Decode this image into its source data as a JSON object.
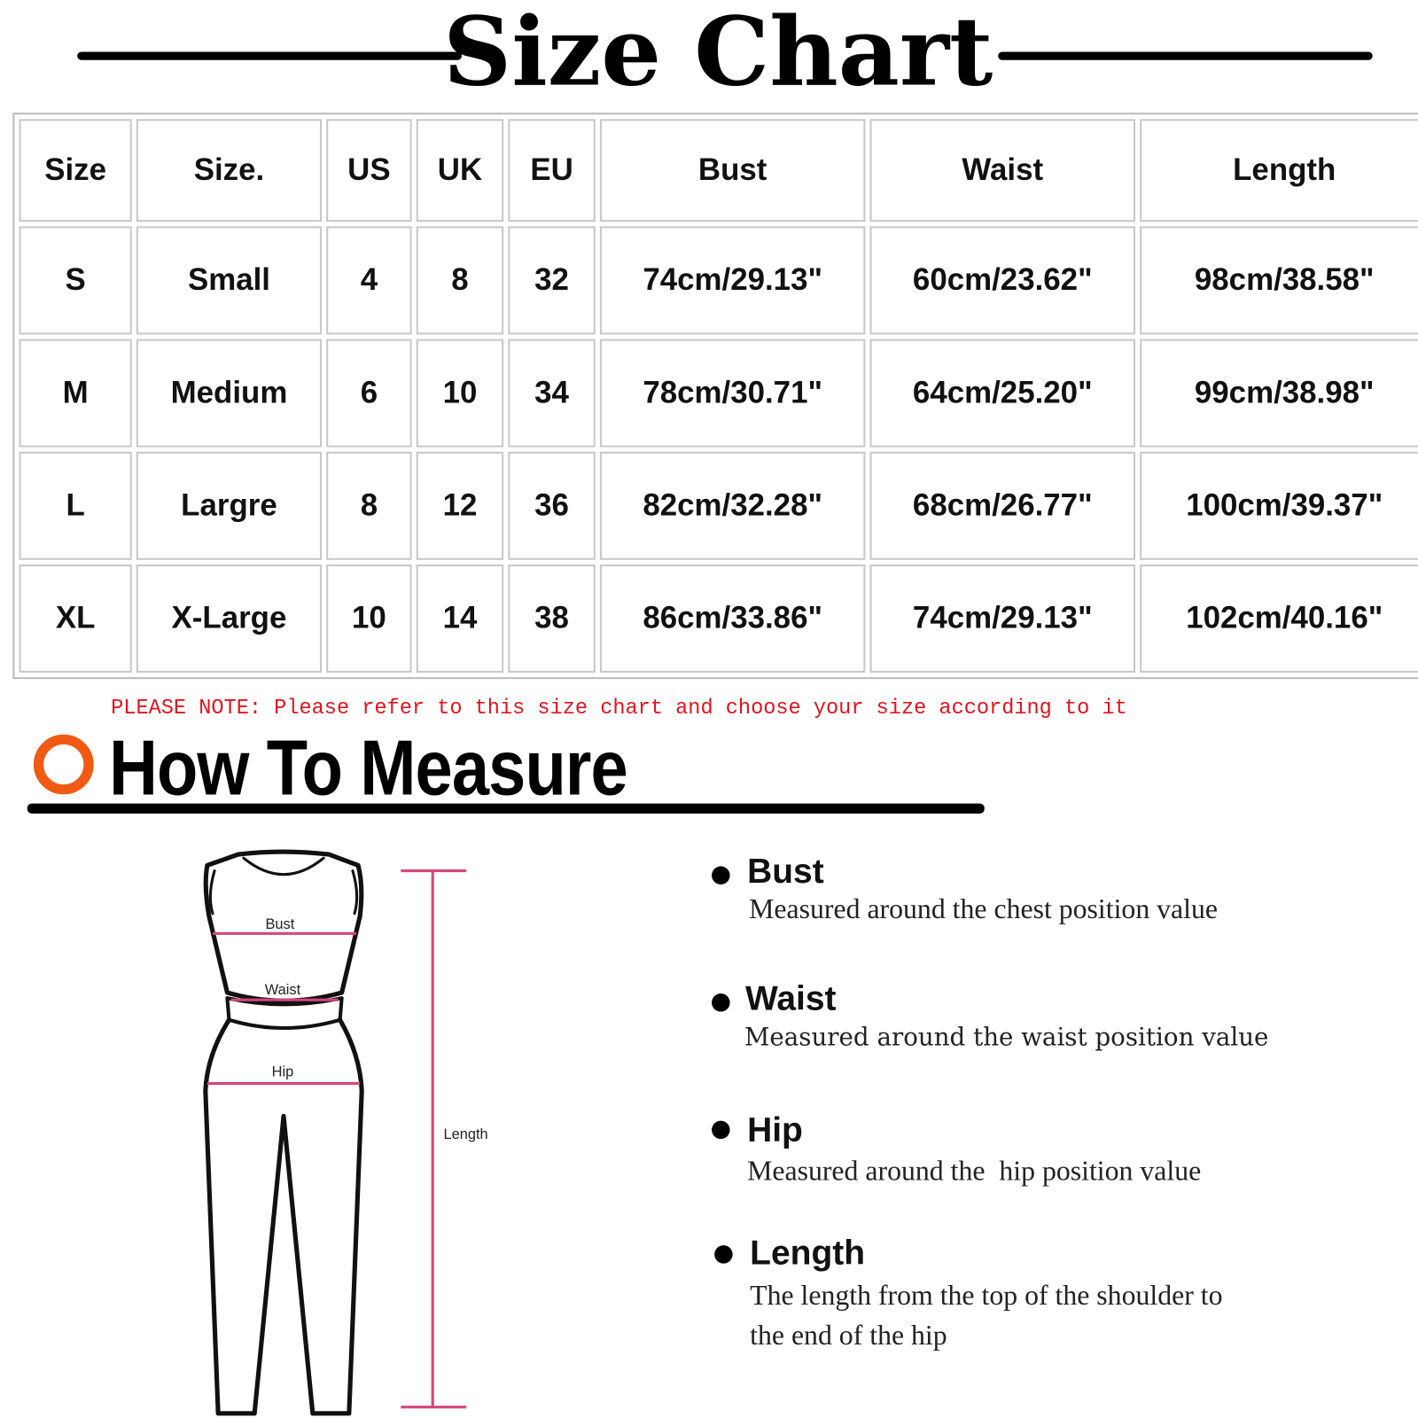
{
  "header": {
    "title": "Size Chart"
  },
  "table": {
    "columns": [
      "Size",
      "Size.",
      "US",
      "UK",
      "EU",
      "Bust",
      "Waist",
      "Length"
    ],
    "rows": [
      [
        "S",
        "Small",
        "4",
        "8",
        "32",
        "74cm/29.13\"",
        "60cm/23.62\"",
        "98cm/38.58\""
      ],
      [
        "M",
        "Medium",
        "6",
        "10",
        "34",
        "78cm/30.71\"",
        "64cm/25.20\"",
        "99cm/38.98\""
      ],
      [
        "L",
        "Largre",
        "8",
        "12",
        "36",
        "82cm/32.28\"",
        "68cm/26.77\"",
        "100cm/39.37\""
      ],
      [
        "XL",
        "X-Large",
        "10",
        "14",
        "38",
        "86cm/33.86\"",
        "74cm/29.13\"",
        "102cm/40.16\""
      ]
    ]
  },
  "note": "PLEASE NOTE: Please refer to this size chart and choose your size according to it",
  "how_to": {
    "title": "How To Measure",
    "accent_color": "#f15a13",
    "figure_labels": {
      "bust": "Bust",
      "waist": "Waist",
      "hip": "Hip",
      "length": "Length"
    },
    "items": [
      {
        "title": "Bust",
        "desc": "Measured around the chest position value"
      },
      {
        "title": "Waist",
        "desc": "Measured around the waist position value"
      },
      {
        "title": "Hip",
        "desc": "Measured around the  hip position value"
      },
      {
        "title": "Length",
        "desc": "The length from the top of the shoulder to",
        "desc2": "the end of the hip"
      }
    ]
  },
  "colors": {
    "note": "#e0141e",
    "measure_line": "#d6457a"
  }
}
